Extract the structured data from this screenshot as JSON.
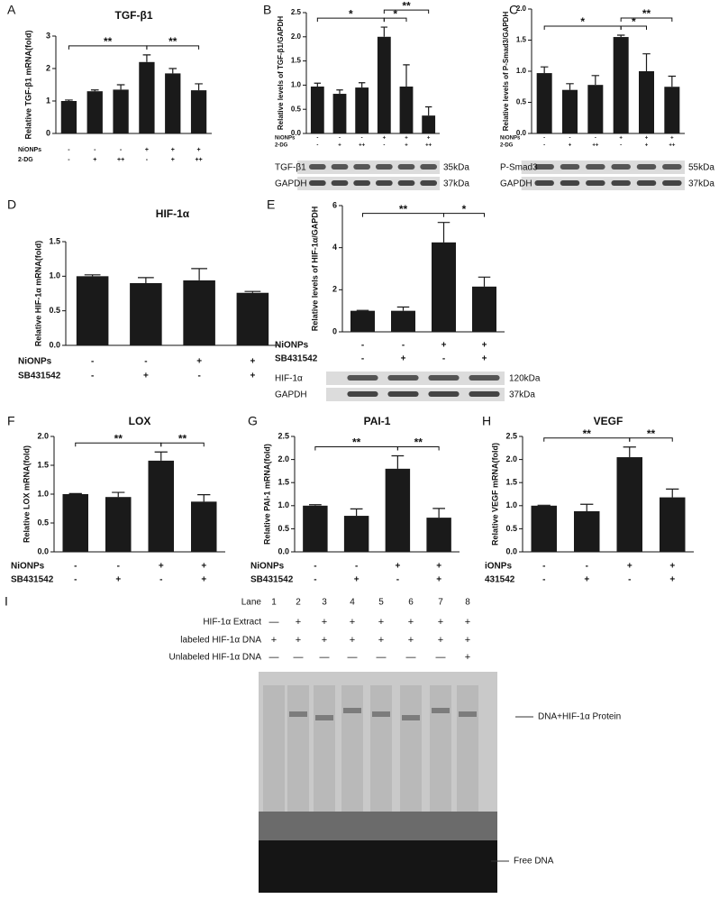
{
  "chart_data": [
    {
      "panel": "A",
      "type": "bar",
      "title": "TGF-β1",
      "ylabel": "Relative TGF-β1 mRNA(fold)",
      "values": [
        1.0,
        1.3,
        1.35,
        2.2,
        1.85,
        1.33
      ],
      "errors": [
        0.03,
        0.04,
        0.15,
        0.22,
        0.15,
        0.2
      ],
      "ylim": [
        0,
        3
      ],
      "yticks": [
        0,
        1,
        2,
        3
      ],
      "brackets": [
        {
          "label": "**",
          "start": 0,
          "end": 3
        },
        {
          "label": "**",
          "start": 3,
          "end": 5
        }
      ],
      "conditions": [
        {
          "name": "NiONPs",
          "values": [
            "-",
            "-",
            "-",
            "+",
            "+",
            "+"
          ]
        },
        {
          "name": "2-DG",
          "values": [
            "-",
            "+",
            "++",
            "-",
            "+",
            "++"
          ]
        }
      ]
    },
    {
      "panel": "B",
      "type": "bar",
      "ylabel": "Relative levels of TGF-β1/GAPDH",
      "values": [
        0.97,
        0.82,
        0.95,
        2.0,
        0.97,
        0.37
      ],
      "errors": [
        0.07,
        0.08,
        0.1,
        0.2,
        0.45,
        0.18
      ],
      "ylim": [
        0,
        2.5
      ],
      "yticks": [
        {
          "value": 0,
          "label": "0.0"
        },
        {
          "value": 0.5,
          "label": "0.5"
        },
        {
          "value": 1,
          "label": "1.0"
        },
        {
          "value": 1.5,
          "label": "1.5"
        },
        {
          "value": 2,
          "label": "2.0"
        },
        {
          "value": 2.5,
          "label": "2.5"
        }
      ],
      "brackets": [
        {
          "label": "*",
          "start": 0,
          "end": 3
        },
        {
          "label": "*",
          "start": 3,
          "end": 4
        },
        {
          "label": "**",
          "start": 3,
          "end": 5
        }
      ],
      "conditions": [
        {
          "name": "NiONPs",
          "values": [
            "-",
            "-",
            "-",
            "+",
            "+",
            "+"
          ]
        },
        {
          "name": "2-DG",
          "values": [
            "-",
            "+",
            "++",
            "-",
            "+",
            "++"
          ]
        }
      ],
      "blots": [
        {
          "name": "TGF-β1",
          "size": "35kDa"
        },
        {
          "name": "GAPDH",
          "size": "37kDa"
        }
      ]
    },
    {
      "panel": "C",
      "type": "bar",
      "ylabel": "Relative levels of P-Smad3/GAPDH",
      "values": [
        0.97,
        0.7,
        0.78,
        1.55,
        1.0,
        0.75
      ],
      "errors": [
        0.1,
        0.1,
        0.15,
        0.03,
        0.28,
        0.17
      ],
      "ylim": [
        0,
        2
      ],
      "yticks": [
        {
          "value": 0,
          "label": "0.0"
        },
        {
          "value": 0.5,
          "label": "0.5"
        },
        {
          "value": 1,
          "label": "1.0"
        },
        {
          "value": 1.5,
          "label": "1.5"
        },
        {
          "value": 2,
          "label": "2.0"
        }
      ],
      "brackets": [
        {
          "label": "*",
          "start": 0,
          "end": 3
        },
        {
          "label": "*",
          "start": 3,
          "end": 4
        },
        {
          "label": "**",
          "start": 3,
          "end": 5
        }
      ],
      "conditions": [
        {
          "name": "NiONPs",
          "values": [
            "-",
            "-",
            "-",
            "+",
            "+",
            "+"
          ]
        },
        {
          "name": "2-DG",
          "values": [
            "-",
            "+",
            "++",
            "-",
            "+",
            "++"
          ]
        }
      ],
      "blots": [
        {
          "name": "P-Smad3",
          "size": "55kDa"
        },
        {
          "name": "GAPDH",
          "size": "37kDa"
        }
      ]
    },
    {
      "panel": "D",
      "type": "bar",
      "title": "HIF-1α",
      "ylabel": "Relative HIF-1α mRNA(fold)",
      "values": [
        1.0,
        0.9,
        0.94,
        0.76
      ],
      "errors": [
        0.02,
        0.08,
        0.17,
        0.02
      ],
      "ylim": [
        0,
        1.5
      ],
      "yticks": [
        {
          "value": 0,
          "label": "0.0"
        },
        {
          "value": 0.5,
          "label": "0.5"
        },
        {
          "value": 1,
          "label": "1.0"
        },
        {
          "value": 1.5,
          "label": "1.5"
        }
      ],
      "brackets": [],
      "conditions": [
        {
          "name": "NiONPs",
          "values": [
            "-",
            "-",
            "+",
            "+"
          ]
        },
        {
          "name": "SB431542",
          "values": [
            "-",
            "+",
            "-",
            "+"
          ]
        }
      ]
    },
    {
      "panel": "E",
      "type": "bar",
      "ylabel": "Relative levels of HIF-1α/GAPDH",
      "values": [
        1.0,
        1.0,
        4.25,
        2.15
      ],
      "errors": [
        0.02,
        0.18,
        0.95,
        0.45
      ],
      "ylim": [
        0,
        6
      ],
      "yticks": [
        0,
        2,
        4,
        6
      ],
      "brackets": [
        {
          "label": "**",
          "start": 0,
          "end": 2
        },
        {
          "label": "*",
          "start": 2,
          "end": 3
        }
      ],
      "conditions": [
        {
          "name": "NiONPs",
          "values": [
            "-",
            "-",
            "+",
            "+"
          ]
        },
        {
          "name": "SB431542",
          "values": [
            "-",
            "+",
            "-",
            "+"
          ]
        }
      ],
      "blots": [
        {
          "name": "HIF-1α",
          "size": "120kDa"
        },
        {
          "name": "GAPDH",
          "size": "37kDa"
        }
      ]
    },
    {
      "panel": "F",
      "type": "bar",
      "title": "LOX",
      "ylabel": "Relative LOX mRNA(fold)",
      "values": [
        1.0,
        0.95,
        1.58,
        0.87
      ],
      "errors": [
        0.01,
        0.08,
        0.15,
        0.12
      ],
      "ylim": [
        0,
        2
      ],
      "yticks": [
        {
          "value": 0,
          "label": "0.0"
        },
        {
          "value": 0.5,
          "label": "0.5"
        },
        {
          "value": 1,
          "label": "1.0"
        },
        {
          "value": 1.5,
          "label": "1.5"
        },
        {
          "value": 2,
          "label": "2.0"
        }
      ],
      "brackets": [
        {
          "label": "**",
          "start": 0,
          "end": 2
        },
        {
          "label": "**",
          "start": 2,
          "end": 3
        }
      ],
      "conditions": [
        {
          "name": "NiONPs",
          "values": [
            "-",
            "-",
            "+",
            "+"
          ]
        },
        {
          "name": "SB431542",
          "values": [
            "-",
            "+",
            "-",
            "+"
          ]
        }
      ]
    },
    {
      "panel": "G",
      "type": "bar",
      "title": "PAI-1",
      "ylabel": "Relative PAI-1 mRNA(fold)",
      "values": [
        1.0,
        0.78,
        1.8,
        0.74
      ],
      "errors": [
        0.02,
        0.15,
        0.28,
        0.2
      ],
      "ylim": [
        0,
        2.5
      ],
      "yticks": [
        {
          "value": 0,
          "label": "0.0"
        },
        {
          "value": 0.5,
          "label": "0.5"
        },
        {
          "value": 1,
          "label": "1.0"
        },
        {
          "value": 1.5,
          "label": "1.5"
        },
        {
          "value": 2,
          "label": "2.0"
        },
        {
          "value": 2.5,
          "label": "2.5"
        }
      ],
      "brackets": [
        {
          "label": "**",
          "start": 0,
          "end": 2
        },
        {
          "label": "**",
          "start": 2,
          "end": 3
        }
      ],
      "conditions": [
        {
          "name": "NiONPs",
          "values": [
            "-",
            "-",
            "+",
            "+"
          ]
        },
        {
          "name": "SB431542",
          "values": [
            "-",
            "+",
            "-",
            "+"
          ]
        }
      ]
    },
    {
      "panel": "H",
      "type": "bar",
      "title": "VEGF",
      "ylabel": "Relative VEGF mRNA(fold)",
      "values": [
        1.0,
        0.88,
        2.05,
        1.18
      ],
      "errors": [
        0.01,
        0.15,
        0.22,
        0.18
      ],
      "ylim": [
        0,
        2.5
      ],
      "yticks": [
        {
          "value": 0,
          "label": "0.0"
        },
        {
          "value": 0.5,
          "label": "0.5"
        },
        {
          "value": 1,
          "label": "1.0"
        },
        {
          "value": 1.5,
          "label": "1.5"
        },
        {
          "value": 2,
          "label": "2.0"
        },
        {
          "value": 2.5,
          "label": "2.5"
        }
      ],
      "brackets": [
        {
          "label": "**",
          "start": 0,
          "end": 2
        },
        {
          "label": "**",
          "start": 2,
          "end": 3
        }
      ],
      "conditions": [
        {
          "name": "iONPs",
          "values": [
            "-",
            "-",
            "+",
            "+"
          ]
        },
        {
          "name": "431542",
          "values": [
            "-",
            "+",
            "-",
            "+"
          ]
        }
      ]
    }
  ],
  "gel": {
    "panel": "I",
    "header": {
      "name": "Lane",
      "values": [
        "1",
        "2",
        "3",
        "4",
        "5",
        "6",
        "7",
        "8"
      ]
    },
    "rows": [
      {
        "name": "HIF-1α Extract",
        "values": [
          "—",
          "+",
          "+",
          "+",
          "+",
          "+",
          "+",
          "+"
        ]
      },
      {
        "name": "labeled HIF-1α DNA",
        "values": [
          "+",
          "+",
          "+",
          "+",
          "+",
          "+",
          "+",
          "+"
        ]
      },
      {
        "name": "Unlabeled HIF-1α DNA",
        "values": [
          "—",
          "—",
          "—",
          "—",
          "—",
          "—",
          "—",
          "+"
        ]
      }
    ],
    "annotations": [
      "DNA+HIF-1α Protein",
      "Free DNA"
    ]
  }
}
